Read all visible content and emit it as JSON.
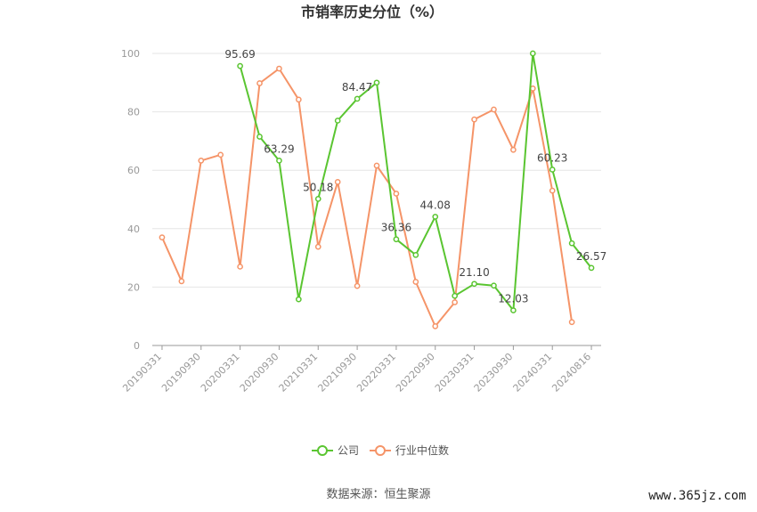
{
  "chart_data": {
    "type": "line",
    "title": "市销率历史分位（%）",
    "xlabel": "",
    "ylabel": "",
    "ylim": [
      0,
      100
    ],
    "yticks": [
      0,
      20,
      40,
      60,
      80,
      100
    ],
    "grid": true,
    "legend_position": "bottom-center",
    "x": [
      "20190331",
      "20190630",
      "20190930",
      "20191231",
      "20200331",
      "20200630",
      "20200930",
      "20201231",
      "20210331",
      "20210630",
      "20210930",
      "20211231",
      "20220331",
      "20220630",
      "20220930",
      "20221231",
      "20230331",
      "20230630",
      "20230930",
      "20231231",
      "20240331",
      "20240630",
      "20240816"
    ],
    "x_tick_labels": [
      "20190331",
      "20190930",
      "20200331",
      "20200930",
      "20210331",
      "20210930",
      "20220331",
      "20220930",
      "20230331",
      "20230930",
      "20240331",
      "20240816"
    ],
    "series": [
      {
        "name": "公司",
        "color": "#5ac531",
        "values": [
          null,
          null,
          null,
          null,
          95.69,
          71.5,
          63.29,
          15.8,
          50.18,
          77.0,
          84.47,
          90.0,
          36.36,
          31.0,
          44.08,
          17.0,
          21.1,
          20.5,
          12.03,
          100.0,
          60.23,
          35.0,
          26.57
        ],
        "labels": [
          {
            "index": 4,
            "text": "95.69"
          },
          {
            "index": 6,
            "text": "63.29"
          },
          {
            "index": 8,
            "text": "50.18"
          },
          {
            "index": 10,
            "text": "84.47"
          },
          {
            "index": 12,
            "text": "36.36"
          },
          {
            "index": 14,
            "text": "44.08"
          },
          {
            "index": 16,
            "text": "21.10"
          },
          {
            "index": 18,
            "text": "12.03"
          },
          {
            "index": 20,
            "text": "60.23"
          },
          {
            "index": 22,
            "text": "26.57"
          }
        ]
      },
      {
        "name": "行业中位数",
        "color": "#f59468",
        "values": [
          37.0,
          22.0,
          63.3,
          65.3,
          27.0,
          89.8,
          94.8,
          84.2,
          33.8,
          56.0,
          20.4,
          61.6,
          52.0,
          21.8,
          6.6,
          14.8,
          77.4,
          80.8,
          67.0,
          88.0,
          53.0,
          8.0,
          null
        ],
        "labels": []
      }
    ]
  },
  "footer": {
    "source": "数据来源：恒生聚源",
    "watermark": "www.365jz.com"
  }
}
